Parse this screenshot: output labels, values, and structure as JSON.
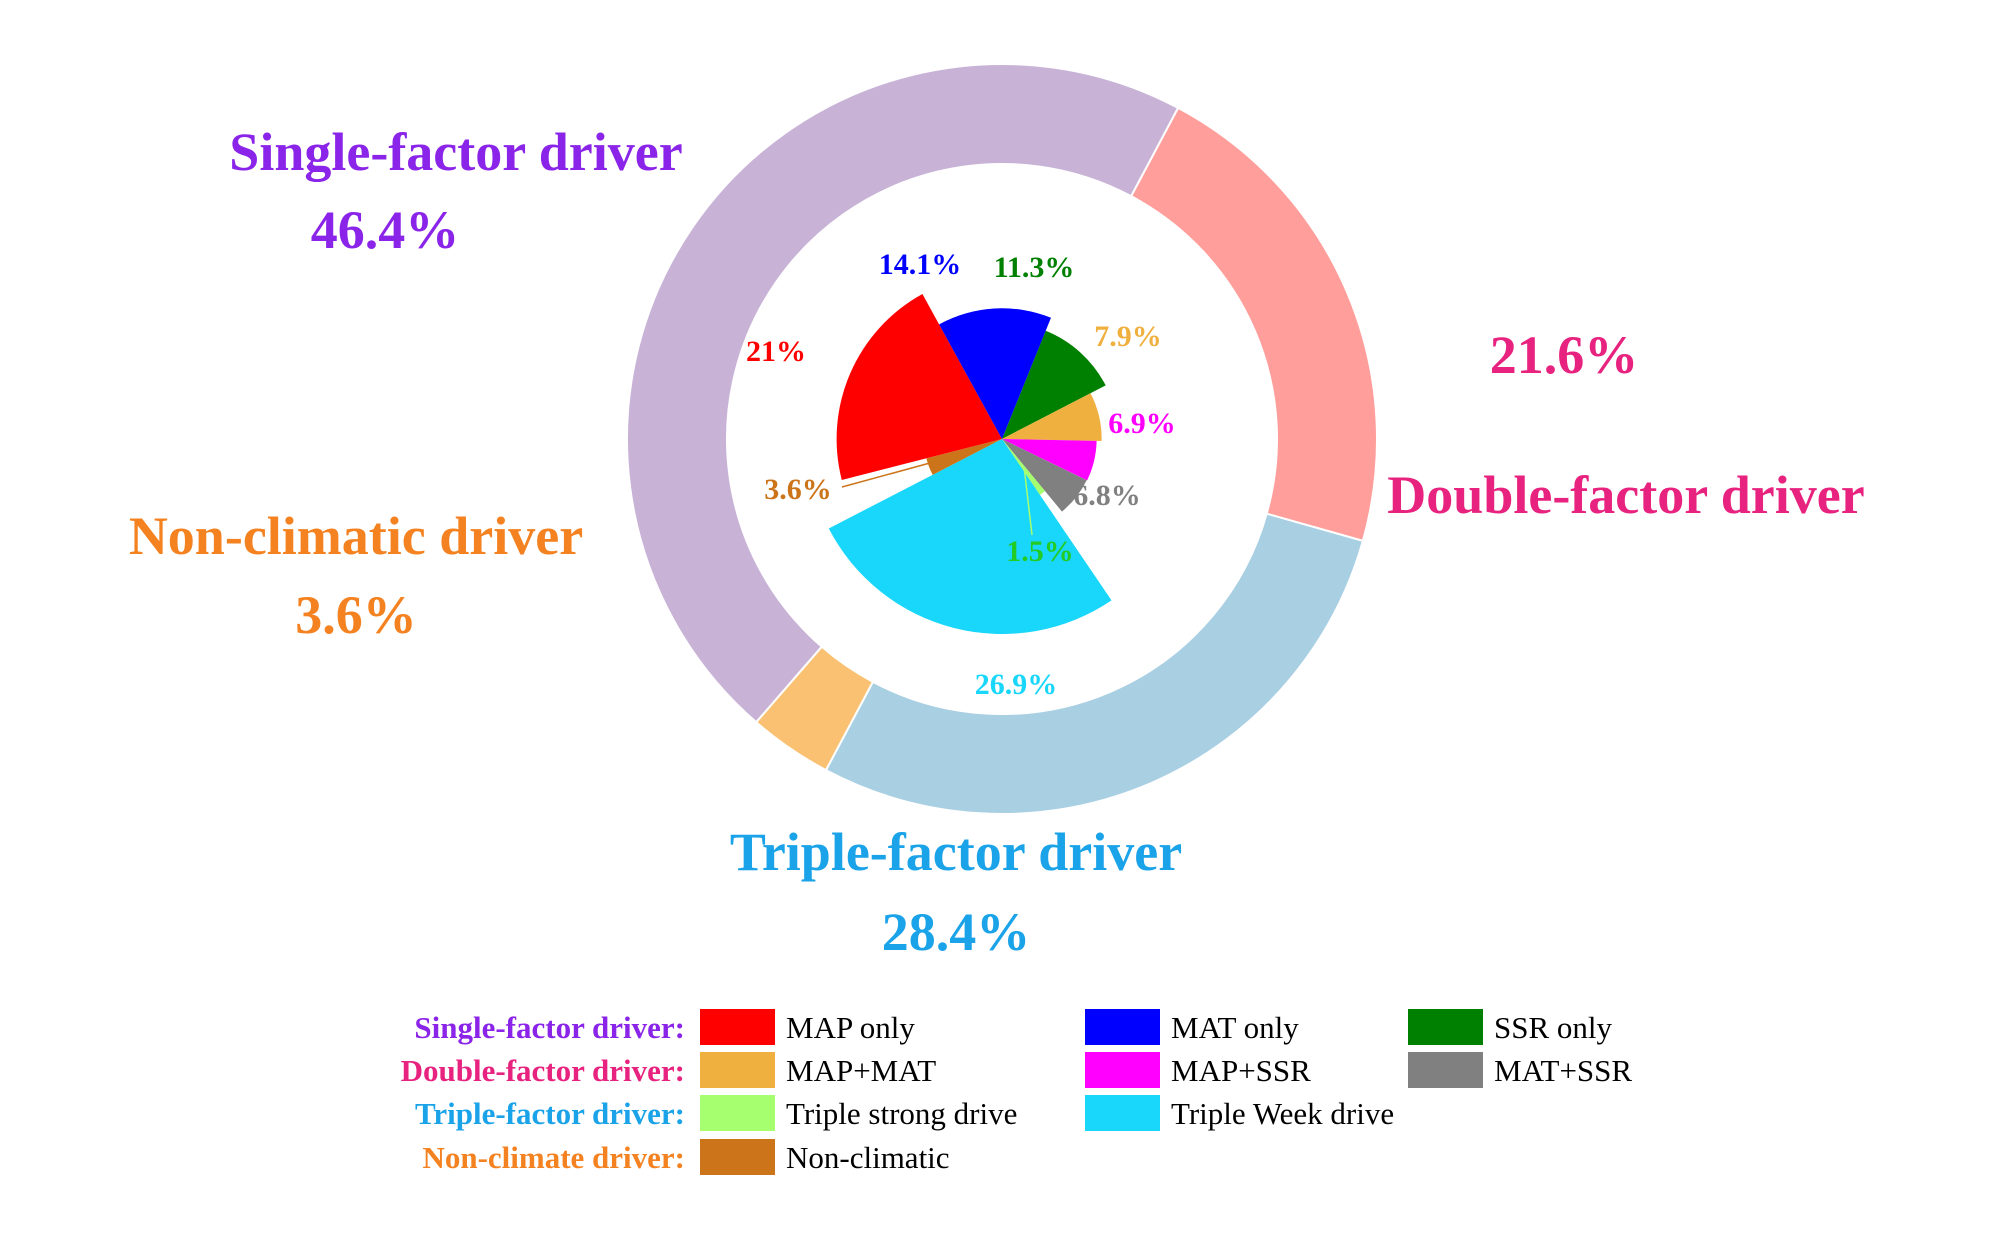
{
  "chart_data": {
    "type": "pie",
    "outer_ring": {
      "categories": [
        "Double-factor driver",
        "Triple-factor driver",
        "Non-climatic driver",
        "Single-factor driver"
      ],
      "values": [
        21.6,
        28.4,
        3.6,
        46.4
      ],
      "labels": [
        "21.6%",
        "28.4%",
        "3.6%",
        "46.4%"
      ],
      "colors": [
        "#ff9e9b",
        "#a9cfe3",
        "#f9c171",
        "#c8b3d7"
      ],
      "text_colors": [
        "#e8227f",
        "#1aa3e8",
        "#f58220",
        "#8b24e9"
      ]
    },
    "inner_rose": {
      "categories": [
        "SSR only",
        "MAP+MAT",
        "MAP+SSR",
        "MAT+SSR",
        "Triple strong drive",
        "Triple Week drive",
        "Non-climatic",
        "MAP only",
        "MAT only"
      ],
      "values": [
        11.3,
        7.9,
        6.9,
        6.8,
        1.5,
        26.9,
        3.6,
        21,
        14.1
      ],
      "labels": [
        "11.3%",
        "7.9%",
        "6.9%",
        "6.8%",
        "1.5%",
        "26.9%",
        "3.6%",
        "21%",
        "14.1%"
      ],
      "colors": [
        "#008000",
        "#f0b040",
        "#ff00ff",
        "#808080",
        "#a6ff6e",
        "#19d6fb",
        "#cc7419",
        "#ff0000",
        "#0000ff"
      ],
      "label_colors": [
        "#008000",
        "#f0b040",
        "#ff00ff",
        "#808080",
        "#22cc22",
        "#19d6fb",
        "#cc7419",
        "#ff0000",
        "#0000ff"
      ]
    },
    "legend": {
      "rows": [
        {
          "title": "Single-factor driver:",
          "color": "#8b24e9",
          "items": [
            {
              "label": "MAP only",
              "color": "#ff0000"
            },
            {
              "label": "MAT only",
              "color": "#0000ff"
            },
            {
              "label": "SSR only",
              "color": "#008000"
            }
          ]
        },
        {
          "title": "Double-factor driver:",
          "color": "#e8227f",
          "items": [
            {
              "label": "MAP+MAT",
              "color": "#f0b040"
            },
            {
              "label": "MAP+SSR",
              "color": "#ff00ff"
            },
            {
              "label": "MAT+SSR",
              "color": "#808080"
            }
          ]
        },
        {
          "title": "Triple-factor driver:",
          "color": "#1aa3e8",
          "items": [
            {
              "label": "Triple strong drive",
              "color": "#a6ff6e"
            },
            {
              "label": "Triple Week drive",
              "color": "#19d6fb"
            }
          ]
        },
        {
          "title": "Non-climate driver:",
          "color": "#f58220",
          "items": [
            {
              "label": "Non-climatic",
              "color": "#cc7419"
            }
          ]
        }
      ]
    }
  }
}
